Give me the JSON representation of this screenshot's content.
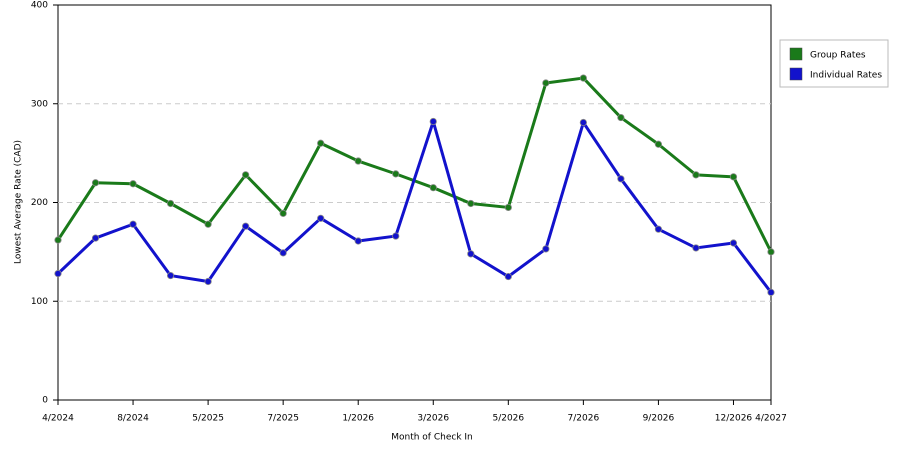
{
  "chart_data": {
    "type": "line",
    "x_label": "Month of Check In",
    "y_label": "Lowest Average Rate (CAD)",
    "categories": [
      "4/2024",
      null,
      "8/2024",
      null,
      "5/2025",
      null,
      "7/2025",
      null,
      "1/2026",
      null,
      "3/2026",
      null,
      "5/2026",
      null,
      "7/2026",
      null,
      "9/2026",
      null,
      "12/2026",
      "4/2027"
    ],
    "series": [
      {
        "name": "Group Rates",
        "color": "#1a7a1a",
        "values": [
          162,
          220,
          219,
          199,
          178,
          228,
          189,
          260,
          242,
          229,
          215,
          199,
          195,
          321,
          326,
          286,
          259,
          228,
          226,
          150
        ]
      },
      {
        "name": "Individual Rates",
        "color": "#1212cc",
        "values": [
          128,
          164,
          178,
          126,
          120,
          176,
          149,
          184,
          161,
          166,
          282,
          148,
          125,
          153,
          281,
          224,
          173,
          154,
          159,
          109
        ]
      }
    ],
    "ylim": [
      0,
      400
    ],
    "yticks": [
      0,
      100,
      200,
      300,
      400
    ],
    "grid": true,
    "legend": "right"
  }
}
